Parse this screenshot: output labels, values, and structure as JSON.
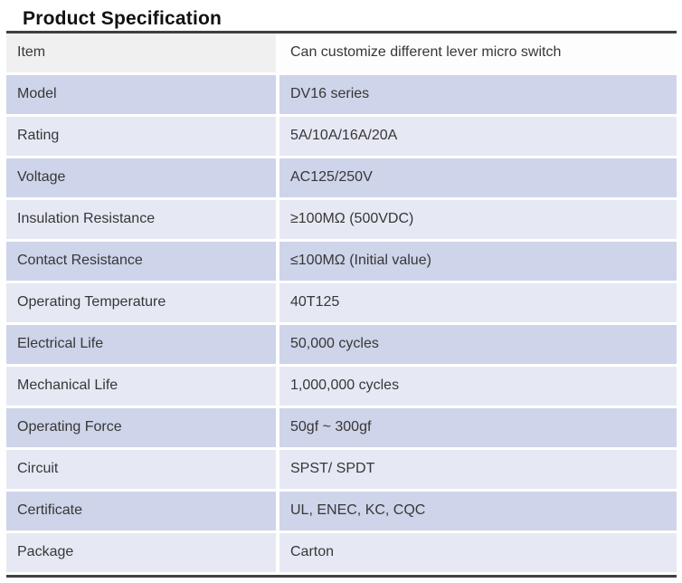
{
  "page": {
    "title": "Product Specification"
  },
  "colors": {
    "row_dark": "#ced4e9",
    "row_light": "#e6e9f4",
    "header_label_bg": "#f0f0f0",
    "header_value_bg": "#fdfdfd",
    "table_border": "#3f3f3f",
    "text": "#373737"
  },
  "table": {
    "rows": [
      {
        "label": "Item",
        "value": "Can customize different lever micro switch"
      },
      {
        "label": "Model",
        "value": "DV16 series"
      },
      {
        "label": "Rating",
        "value": "5A/10A/16A/20A"
      },
      {
        "label": "Voltage",
        "value": "AC125/250V"
      },
      {
        "label": "Insulation Resistance",
        "value": "≥100MΩ (500VDC)"
      },
      {
        "label": "Contact Resistance",
        "value": "≤100MΩ (Initial value)"
      },
      {
        "label": "Operating Temperature",
        "value": "40T125"
      },
      {
        "label": "Electrical Life",
        "value": "50,000 cycles"
      },
      {
        "label": "Mechanical Life",
        "value": "1,000,000 cycles"
      },
      {
        "label": "Operating Force",
        "value": "50gf ~ 300gf"
      },
      {
        "label": "Circuit",
        "value": "SPST/ SPDT"
      },
      {
        "label": "Certificate",
        "value": "UL, ENEC, KC, CQC"
      },
      {
        "label": "Package",
        "value": "Carton"
      }
    ]
  }
}
